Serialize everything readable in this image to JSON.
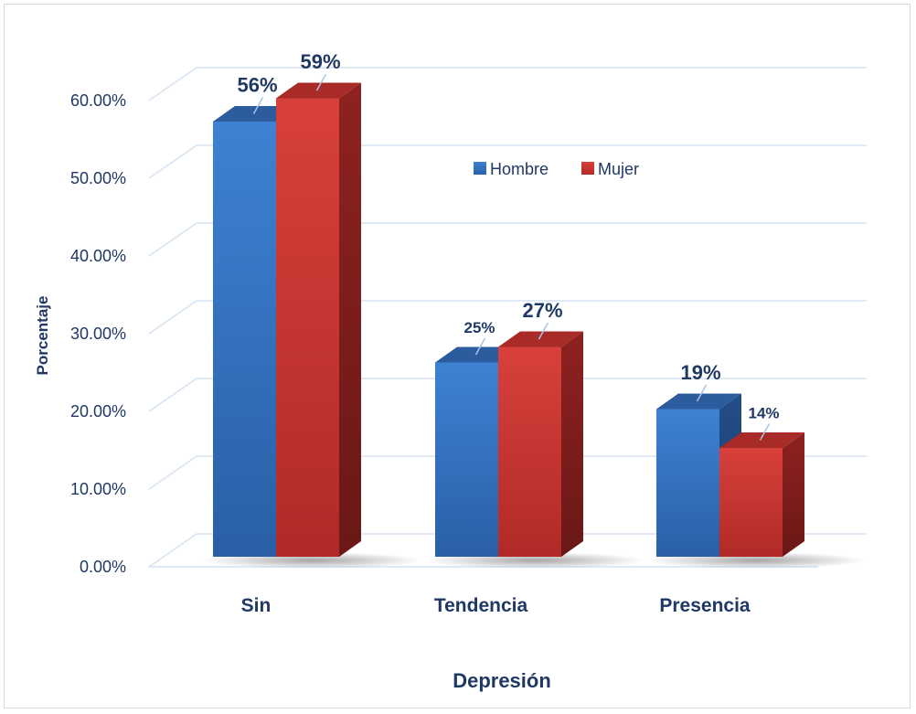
{
  "chart_data": {
    "type": "bar",
    "title": "",
    "xlabel": "Depresión",
    "ylabel": "Porcentaje",
    "categories": [
      "Sin",
      "Tendencia",
      "Presencia"
    ],
    "series": [
      {
        "name": "Hombre",
        "values": [
          56,
          25,
          19
        ],
        "labels": [
          "56%",
          "25%",
          "19%"
        ],
        "color": "#2f6fc0"
      },
      {
        "name": "Mujer",
        "values": [
          59,
          27,
          14
        ],
        "labels": [
          "59%",
          "27%",
          "14%"
        ],
        "color": "#c9302c"
      }
    ],
    "yticks": [
      "0.00%",
      "10.00%",
      "20.00%",
      "30.00%",
      "40.00%",
      "50.00%",
      "60.00%"
    ],
    "ylim": [
      0,
      70
    ],
    "grid": true,
    "legend_position": "top-center",
    "style": "3d-column"
  }
}
